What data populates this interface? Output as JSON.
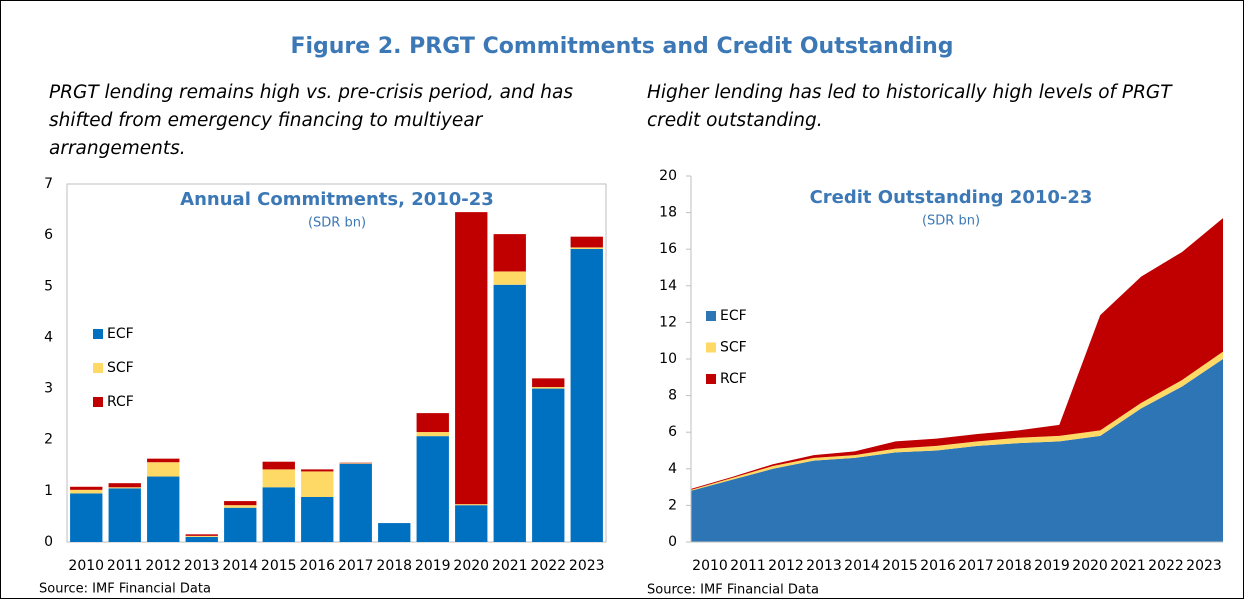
{
  "title": "Figure 2. PRGT Commitments and Credit Outstanding",
  "chart_data": [
    {
      "type": "bar",
      "stacked": true,
      "description": "PRGT lending remains high vs. pre-crisis period, and has shifted from emergency financing to multiyear arrangements.",
      "title": "Annual Commitments, 2010-23",
      "subtitle": "(SDR bn)",
      "source": "Source: IMF Financial Data",
      "categories": [
        "2010",
        "2011",
        "2012",
        "2013",
        "2014",
        "2015",
        "2016",
        "2017",
        "2018",
        "2019",
        "2020",
        "2021",
        "2022",
        "2023"
      ],
      "series": [
        {
          "name": "ECF",
          "color": "#0070c0",
          "values": [
            0.95,
            1.05,
            1.28,
            0.1,
            0.67,
            1.07,
            0.88,
            1.53,
            0.37,
            2.07,
            0.72,
            5.03,
            3.0,
            5.73
          ]
        },
        {
          "name": "SCF",
          "color": "#ffd966",
          "values": [
            0.07,
            0.02,
            0.28,
            0.02,
            0.05,
            0.35,
            0.5,
            0.01,
            0,
            0.08,
            0.02,
            0.26,
            0.03,
            0.03
          ]
        },
        {
          "name": "RCF",
          "color": "#c00000",
          "values": [
            0.06,
            0.08,
            0.07,
            0.03,
            0.08,
            0.15,
            0.04,
            0.01,
            0,
            0.37,
            5.71,
            0.73,
            0.17,
            0.21
          ]
        }
      ],
      "ylim": [
        0,
        7
      ],
      "yticks": [
        0,
        1,
        2,
        3,
        4,
        5,
        6,
        7
      ],
      "grid": false,
      "legend": "left"
    },
    {
      "type": "area",
      "stacked": true,
      "description": "Higher lending has led to historically high levels of PRGT credit outstanding.",
      "title": "Credit Outstanding 2010-23",
      "subtitle": "(SDR bn)",
      "source": "Source: IMF Financial Data",
      "categories": [
        "2010",
        "2011",
        "2012",
        "2013",
        "2014",
        "2015",
        "2016",
        "2017",
        "2018",
        "2019",
        "2020",
        "2021",
        "2022",
        "2023"
      ],
      "series": [
        {
          "name": "ECF",
          "color": "#2e75b6",
          "values": [
            2.8,
            3.4,
            4.0,
            4.45,
            4.6,
            4.9,
            5.0,
            5.25,
            5.4,
            5.5,
            5.8,
            7.3,
            8.5,
            10.0
          ]
        },
        {
          "name": "SCF",
          "color": "#ffd966",
          "values": [
            0.05,
            0.1,
            0.15,
            0.15,
            0.15,
            0.2,
            0.25,
            0.25,
            0.3,
            0.3,
            0.3,
            0.3,
            0.35,
            0.4
          ]
        },
        {
          "name": "RCF",
          "color": "#c00000",
          "values": [
            0.05,
            0.05,
            0.1,
            0.15,
            0.2,
            0.4,
            0.4,
            0.4,
            0.4,
            0.6,
            6.3,
            6.9,
            7.0,
            7.3
          ]
        }
      ],
      "ylim": [
        0,
        20
      ],
      "yticks": [
        0,
        2,
        4,
        6,
        8,
        10,
        12,
        14,
        16,
        18,
        20
      ],
      "grid": false,
      "legend": "left"
    }
  ]
}
